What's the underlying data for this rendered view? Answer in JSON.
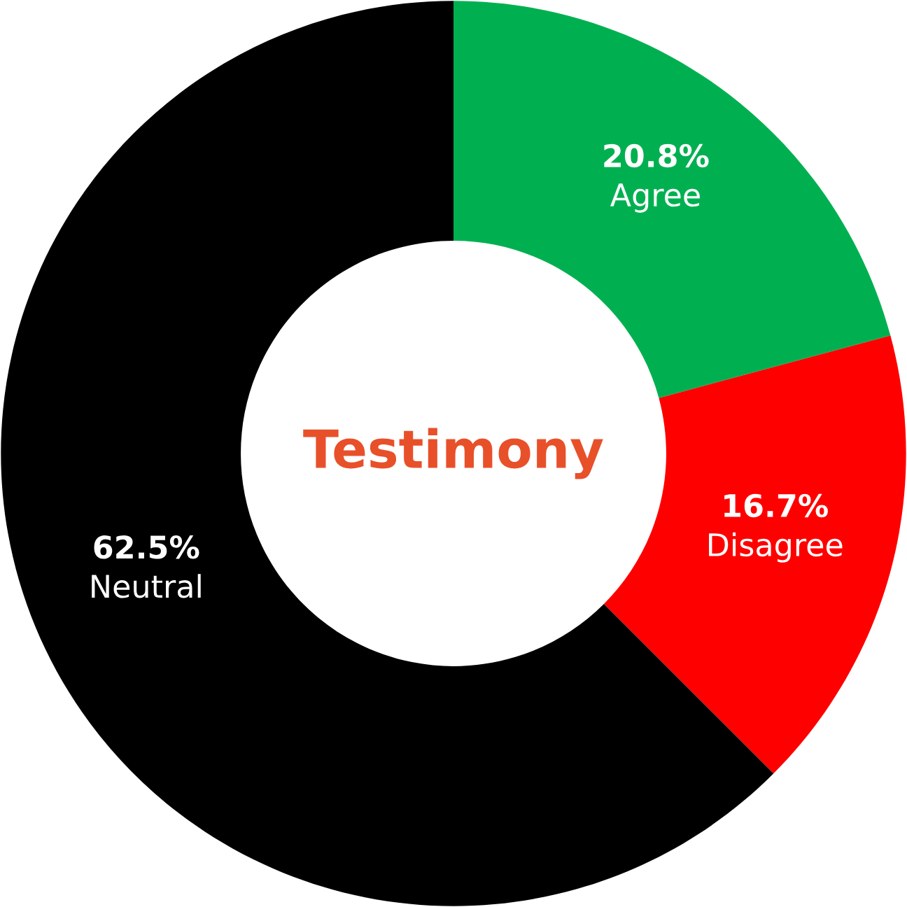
{
  "chart_data": {
    "type": "donut",
    "title": "Testimony",
    "categories": [
      "Agree",
      "Disagree",
      "Neutral"
    ],
    "values": [
      20.8,
      16.7,
      62.5
    ],
    "value_labels": [
      "20.8%",
      "16.7%",
      "62.5%"
    ],
    "colors": [
      "#00b050",
      "#ff0000",
      "#000000"
    ],
    "legend": false
  }
}
